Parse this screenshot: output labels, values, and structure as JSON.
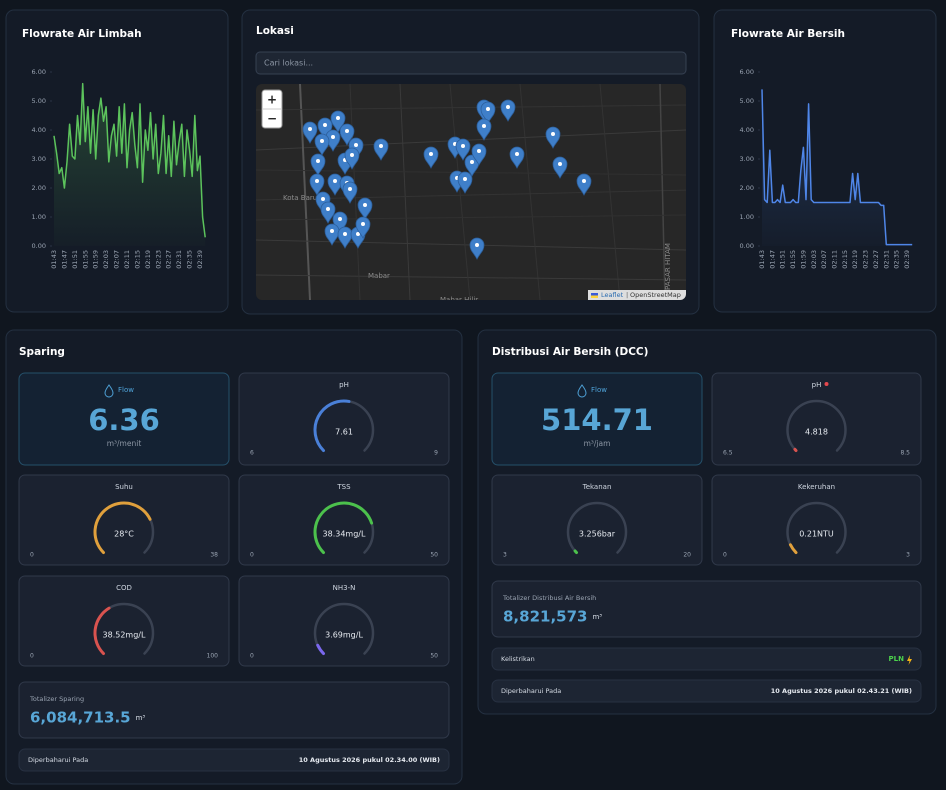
{
  "chart_data": [
    {
      "type": "line",
      "title": "Flowrate Air Limbah",
      "categories": [
        "01:43",
        null,
        null,
        null,
        "01:47",
        null,
        null,
        null,
        "01:51",
        null,
        null,
        null,
        "01:55",
        null,
        null,
        null,
        "01:59",
        null,
        null,
        null,
        "02:03",
        null,
        null,
        null,
        "02:07",
        null,
        null,
        null,
        "02:11",
        null,
        null,
        null,
        "02:15",
        null,
        null,
        null,
        "02:19",
        null,
        null,
        null,
        "02:23",
        null,
        null,
        null,
        "02:27",
        null,
        null,
        null,
        "02:31",
        null,
        null,
        null,
        "02:35",
        null,
        null,
        null,
        "02:39",
        null,
        null
      ],
      "series": [
        {
          "color": "#5cc35c",
          "values": [
            3.8,
            3.2,
            2.5,
            2.7,
            2.0,
            2.9,
            4.2,
            3.1,
            3.0,
            4.5,
            3.5,
            5.6,
            3.6,
            4.8,
            3.2,
            4.7,
            3.0,
            4.5,
            5.1,
            4.3,
            4.8,
            2.9,
            3.8,
            4.2,
            3.1,
            4.8,
            3.2,
            4.9,
            2.7,
            4.0,
            4.6,
            3.5,
            2.7,
            4.9,
            2.2,
            4.0,
            3.3,
            4.6,
            3.0,
            4.2,
            2.5,
            3.2,
            4.5,
            2.5,
            3.8,
            2.4,
            4.3,
            2.8,
            3.6,
            4.2,
            2.4,
            4.0,
            3.3,
            2.4,
            4.5,
            2.6,
            3.1,
            1.0,
            0.3
          ]
        }
      ],
      "ylim": [
        0,
        6
      ],
      "yticks": [
        {
          "value": 0,
          "label": "0.00"
        },
        {
          "value": 1,
          "label": "1.00"
        },
        {
          "value": 2,
          "label": "2.00"
        },
        {
          "value": 3,
          "label": "3.00"
        },
        {
          "value": 4,
          "label": "4.00"
        },
        {
          "value": 5,
          "label": "5.00"
        },
        {
          "value": 6,
          "label": "6.00"
        }
      ]
    },
    {
      "type": "line",
      "title": "Flowrate Air Bersih",
      "categories": [
        "01:43",
        null,
        null,
        null,
        "01:47",
        null,
        null,
        null,
        "01:51",
        null,
        null,
        null,
        "01:55",
        null,
        null,
        null,
        "01:59",
        null,
        null,
        null,
        "02:03",
        null,
        null,
        null,
        "02:07",
        null,
        null,
        null,
        "02:11",
        null,
        null,
        null,
        "02:15",
        null,
        null,
        null,
        "02:19",
        null,
        null,
        null,
        "02:23",
        null,
        null,
        null,
        "02:27",
        null,
        null,
        null,
        "02:31",
        null,
        null,
        null,
        "02:35",
        null,
        null,
        null,
        "02:39",
        null,
        null
      ],
      "series": [
        {
          "color": "#4f86e8",
          "values": [
            5.4,
            1.6,
            1.5,
            3.3,
            1.5,
            1.5,
            1.6,
            1.5,
            2.1,
            1.5,
            1.5,
            1.5,
            1.6,
            1.5,
            1.5,
            2.6,
            3.4,
            1.6,
            4.9,
            1.6,
            1.5,
            1.5,
            1.5,
            1.5,
            1.5,
            1.5,
            1.5,
            1.5,
            1.5,
            1.5,
            1.5,
            1.5,
            1.5,
            1.5,
            1.5,
            2.5,
            1.6,
            2.5,
            1.5,
            1.5,
            1.5,
            1.5,
            1.5,
            1.5,
            1.5,
            1.5,
            1.4,
            1.4,
            0.05,
            0.05,
            0.05,
            0.05,
            0.05,
            0.05,
            0.05,
            0.05,
            0.05,
            0.05,
            0.05
          ]
        }
      ],
      "ylim": [
        0,
        6
      ],
      "yticks": [
        {
          "value": 0,
          "label": "0.00"
        },
        {
          "value": 1,
          "label": "1.00"
        },
        {
          "value": 2,
          "label": "2.00"
        },
        {
          "value": 3,
          "label": "3.00"
        },
        {
          "value": 4,
          "label": "4.00"
        },
        {
          "value": 5,
          "label": "5.00"
        },
        {
          "value": 6,
          "label": "6.00"
        }
      ]
    }
  ],
  "map": {
    "title": "Lokasi",
    "search_placeholder": "Cari lokasi...",
    "zoom_in": "+",
    "zoom_out": "−",
    "place_labels": [
      "Kota Baru",
      "Mabar",
      "Mabar Hilir",
      "PASAR HITAM"
    ],
    "attribution": {
      "leaflet": "Leaflet",
      "separator": "|",
      "osm": "OpenStreetMap"
    }
  },
  "sparing": {
    "title": "Sparing",
    "flow": {
      "label": "Flow",
      "value": 6.36,
      "unit": "m³/menit"
    },
    "gauges": [
      {
        "label": "pH",
        "value": 7.61,
        "min": 6,
        "max": 9,
        "color": "#4a80d8"
      },
      {
        "label": "Suhu",
        "value": 28,
        "value_label": "28°C",
        "min": 0,
        "max": 38,
        "color": "#e0a03c"
      },
      {
        "label": "TSS",
        "value": 38.34,
        "value_label": "38.34mg/L",
        "min": 0,
        "max": 50,
        "color": "#4cc14c"
      },
      {
        "label": "COD",
        "value": 38.52,
        "value_label": "38.52mg/L",
        "min": 0,
        "max": 100,
        "color": "#d9534f"
      },
      {
        "label": "NH3-N",
        "value": 3.69,
        "value_label": "3.69mg/L",
        "min": 0,
        "max": 50,
        "color": "#7b68ee"
      }
    ],
    "totalizer": {
      "label": "Totalizer Sparing",
      "value": 6084713.5,
      "value_label": "6,084,713.5",
      "unit": "m³"
    },
    "updated": {
      "label": "Diperbaharui Pada",
      "value": "10 Agustus 2026 pukul 02.34.00 (WIB)"
    }
  },
  "distribusi": {
    "title": "Distribusi Air Bersih (DCC)",
    "flow": {
      "label": "Flow",
      "value": 514.71,
      "unit": "m³/jam"
    },
    "gauges": [
      {
        "label": "pH",
        "value": 4.818,
        "min": 6.5,
        "max": 8.5,
        "color": "#d9534f"
      },
      {
        "label": "Tekanan",
        "value": 3.256,
        "value_label": "3.256bar",
        "min": 3,
        "max": 20,
        "color": "#4cc14c"
      },
      {
        "label": "Kekeruhan",
        "value": 0.21,
        "value_label": "0.21NTU",
        "min": 0,
        "max": 3,
        "color": "#e0a03c"
      }
    ],
    "totalizer": {
      "label": "Totalizer Distribusi Air Bersih",
      "value": 8821573,
      "value_label": "8,821,573",
      "unit": "m³"
    },
    "electricity": {
      "label": "Kelistrikan",
      "value": "PLN"
    },
    "updated": {
      "label": "Diperbaharui Pada",
      "value": "10 Agustus 2026 pukul 02.43.21 (WIB)"
    }
  }
}
